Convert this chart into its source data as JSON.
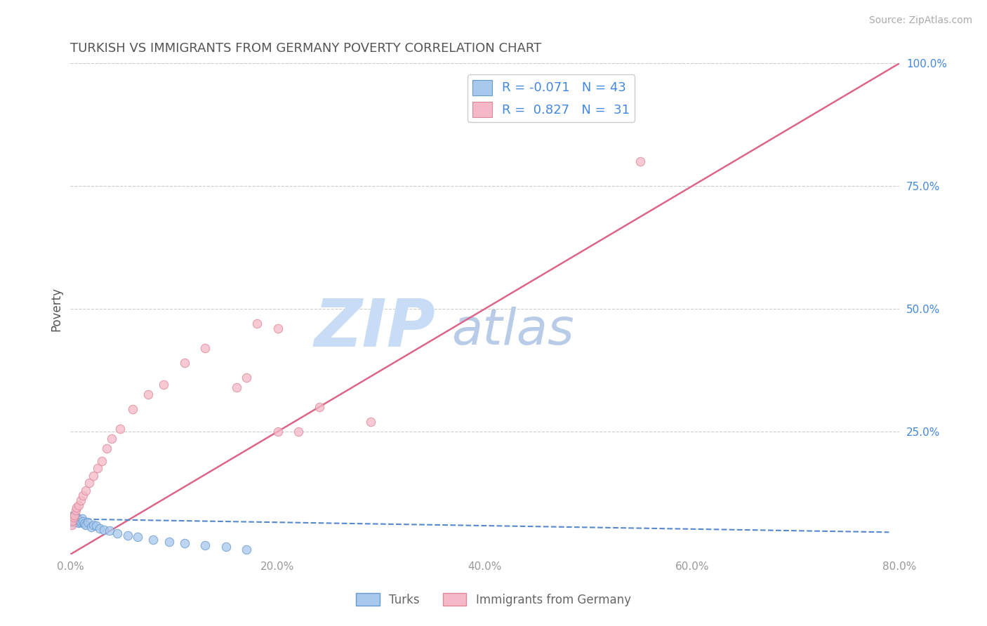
{
  "title": "TURKISH VS IMMIGRANTS FROM GERMANY POVERTY CORRELATION CHART",
  "source": "Source: ZipAtlas.com",
  "ylabel": "Poverty",
  "xlim": [
    0.0,
    0.8
  ],
  "ylim": [
    0.0,
    1.0
  ],
  "xtick_vals": [
    0.0,
    0.2,
    0.4,
    0.6,
    0.8
  ],
  "ytick_vals": [
    0.0,
    0.25,
    0.5,
    0.75,
    1.0
  ],
  "turks_color": "#a8c8ee",
  "turks_edge_color": "#6699cc",
  "germany_color": "#f5b8c8",
  "germany_edge_color": "#dd8899",
  "turks_R": -0.071,
  "turks_N": 43,
  "germany_R": 0.827,
  "germany_N": 31,
  "turks_x": [
    0.001,
    0.001,
    0.001,
    0.002,
    0.002,
    0.002,
    0.003,
    0.003,
    0.003,
    0.004,
    0.004,
    0.004,
    0.005,
    0.005,
    0.005,
    0.006,
    0.006,
    0.007,
    0.007,
    0.008,
    0.008,
    0.009,
    0.01,
    0.011,
    0.012,
    0.013,
    0.015,
    0.017,
    0.02,
    0.022,
    0.025,
    0.028,
    0.032,
    0.038,
    0.045,
    0.055,
    0.065,
    0.08,
    0.095,
    0.11,
    0.13,
    0.15,
    0.17
  ],
  "turks_y": [
    0.065,
    0.07,
    0.075,
    0.068,
    0.072,
    0.078,
    0.065,
    0.07,
    0.075,
    0.068,
    0.073,
    0.08,
    0.065,
    0.07,
    0.074,
    0.068,
    0.075,
    0.066,
    0.072,
    0.064,
    0.07,
    0.068,
    0.065,
    0.072,
    0.067,
    0.063,
    0.06,
    0.065,
    0.055,
    0.06,
    0.058,
    0.052,
    0.05,
    0.048,
    0.042,
    0.038,
    0.035,
    0.03,
    0.025,
    0.022,
    0.018,
    0.015,
    0.01
  ],
  "germany_x": [
    0.001,
    0.002,
    0.003,
    0.004,
    0.005,
    0.006,
    0.008,
    0.01,
    0.012,
    0.015,
    0.018,
    0.022,
    0.026,
    0.03,
    0.035,
    0.04,
    0.048,
    0.06,
    0.075,
    0.09,
    0.11,
    0.13,
    0.16,
    0.2,
    0.24,
    0.29,
    0.2,
    0.17,
    0.22,
    0.18,
    0.55
  ],
  "germany_y": [
    0.06,
    0.068,
    0.075,
    0.08,
    0.09,
    0.095,
    0.1,
    0.11,
    0.12,
    0.13,
    0.145,
    0.16,
    0.175,
    0.19,
    0.215,
    0.235,
    0.255,
    0.295,
    0.325,
    0.345,
    0.39,
    0.42,
    0.34,
    0.25,
    0.3,
    0.27,
    0.46,
    0.36,
    0.25,
    0.47,
    0.8
  ],
  "turks_trend_x": [
    0.0,
    0.79
  ],
  "turks_trend_y": [
    0.072,
    0.045
  ],
  "germany_trend_x": [
    0.0,
    0.8
  ],
  "germany_trend_y": [
    0.0,
    1.0
  ],
  "watermark_zip": "ZIP",
  "watermark_atlas": "atlas",
  "watermark_color_zip": "#c8ddf5",
  "watermark_color_atlas": "#b8cce8",
  "background_color": "#ffffff",
  "title_color": "#555555",
  "tick_color": "#999999",
  "legend_R_color": "#4488dd",
  "trend_blue_color": "#5588cc",
  "trend_pink_color": "#dd6688",
  "source_color": "#aaaaaa"
}
